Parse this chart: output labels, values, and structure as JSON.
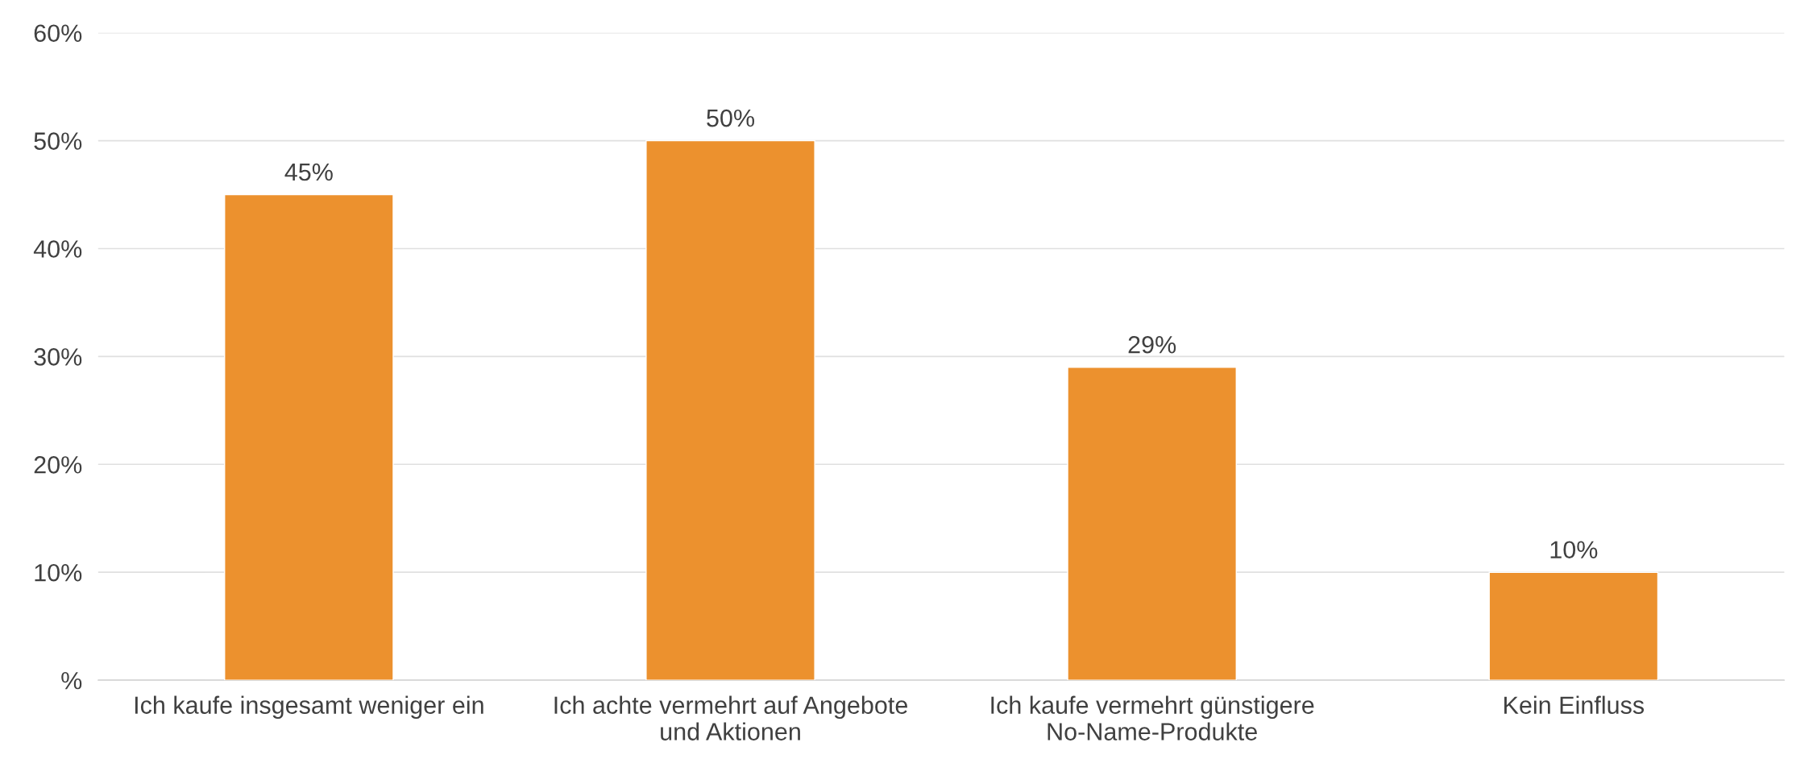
{
  "chart_data": {
    "type": "bar",
    "categories": [
      "Ich kaufe insgesamt weniger ein",
      "Ich achte vermehrt auf Angebote\nund Aktionen",
      "Ich kaufe vermehrt günstigere\nNo-Name-Produkte",
      "Kein Einfluss"
    ],
    "values": [
      45,
      50,
      29,
      10
    ],
    "value_labels": [
      "45%",
      "50%",
      "29%",
      "10%"
    ],
    "color": "#ec912e",
    "ylim": [
      0,
      60
    ],
    "yticks": [
      {
        "value": 0,
        "label": "%"
      },
      {
        "value": 10,
        "label": "10%"
      },
      {
        "value": 20,
        "label": "20%"
      },
      {
        "value": 30,
        "label": "30%"
      },
      {
        "value": 40,
        "label": "40%"
      },
      {
        "value": 50,
        "label": "50%"
      },
      {
        "value": 60,
        "label": "60%"
      }
    ],
    "grid": "y"
  }
}
